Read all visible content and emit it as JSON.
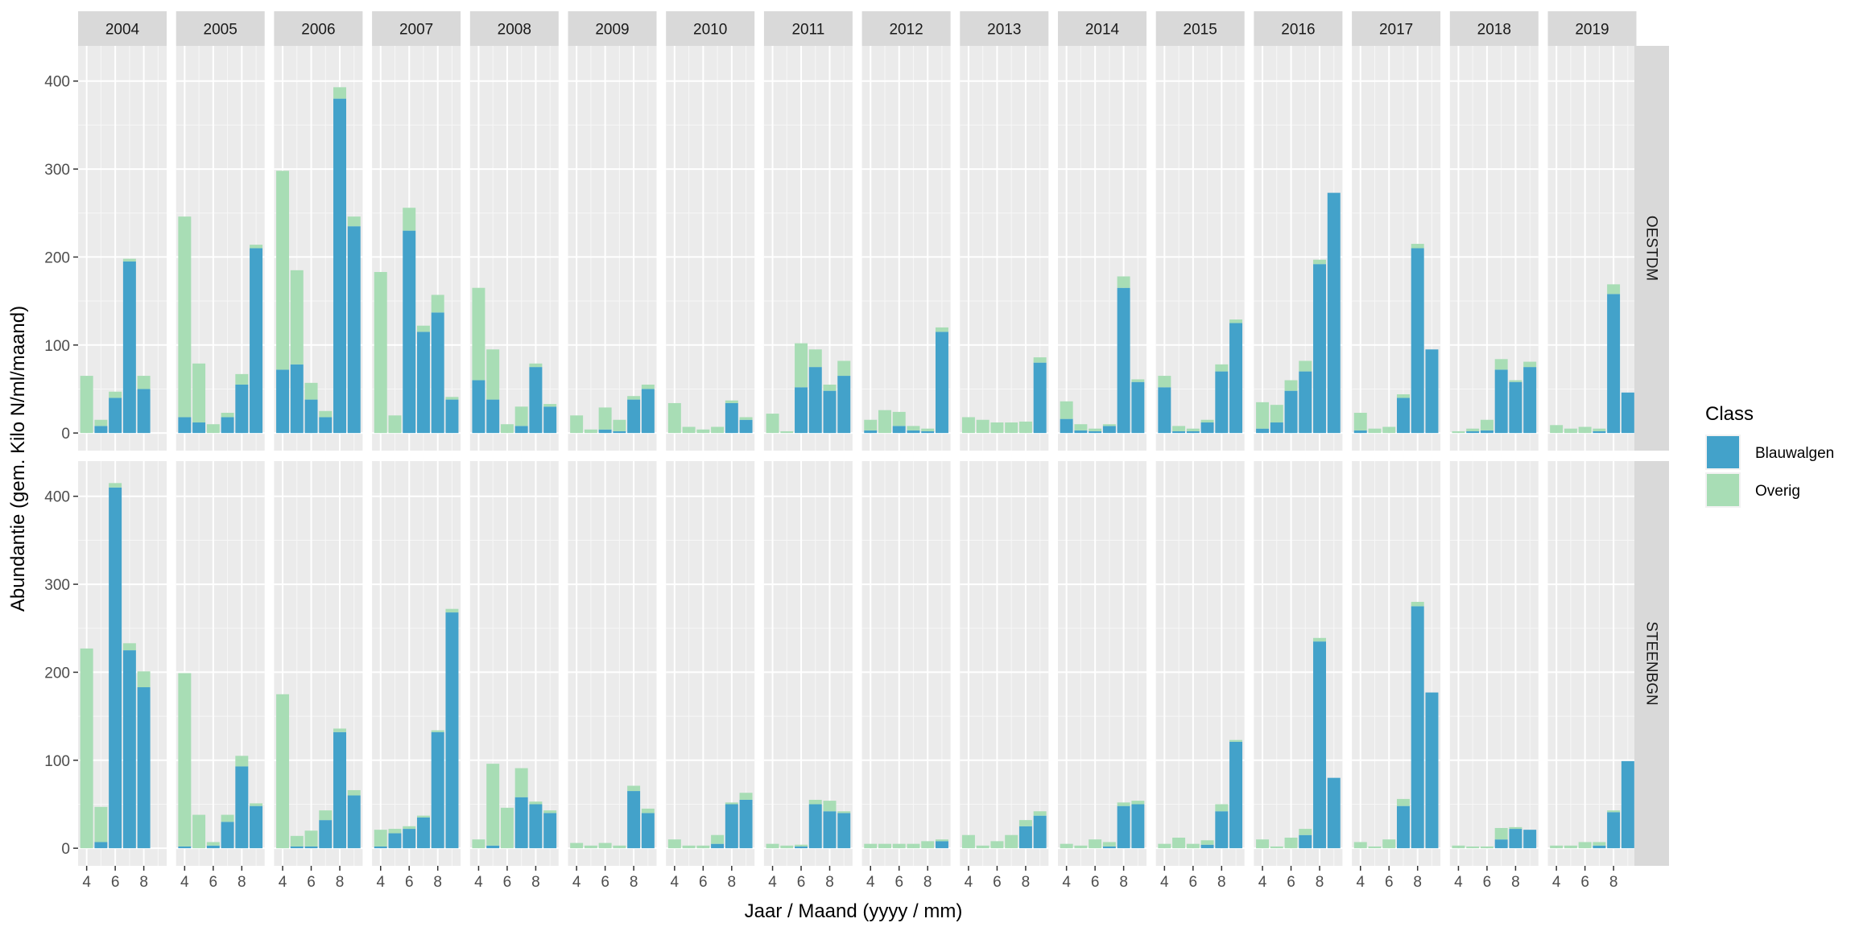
{
  "chart_data": {
    "type": "bar",
    "stacked": true,
    "xlabel": "Jaar / Maand (yyyy / mm)",
    "ylabel": "Abundantie (gem. Kilo N/ml/maand)",
    "ylim": [
      -20,
      440
    ],
    "yticks": [
      0,
      100,
      200,
      300,
      400
    ],
    "xticks": [
      4,
      6,
      8
    ],
    "months": [
      4,
      5,
      6,
      7,
      8,
      9
    ],
    "grid": true,
    "legend": {
      "title": "Class",
      "position": "right",
      "entries": [
        {
          "name": "Blauwalgen",
          "color": "#43A2CA"
        },
        {
          "name": "Overig",
          "color": "#A8DDB5"
        }
      ]
    },
    "years": [
      "2004",
      "2005",
      "2006",
      "2007",
      "2008",
      "2009",
      "2010",
      "2011",
      "2012",
      "2013",
      "2014",
      "2015",
      "2016",
      "2017",
      "2018",
      "2019"
    ],
    "rows": [
      {
        "label": "OESTDM",
        "series": [
          {
            "name": "Blauwalgen",
            "values": [
              [
                0,
                8,
                40,
                195,
                50,
                0
              ],
              [
                18,
                12,
                0,
                18,
                55,
                210
              ],
              [
                72,
                78,
                38,
                18,
                380,
                235
              ],
              [
                0,
                0,
                230,
                115,
                137,
                38
              ],
              [
                60,
                38,
                0,
                8,
                75,
                30
              ],
              [
                0,
                0,
                4,
                2,
                38,
                50
              ],
              [
                0,
                0,
                0,
                0,
                34,
                15
              ],
              [
                0,
                0,
                52,
                75,
                48,
                65
              ],
              [
                3,
                0,
                8,
                3,
                2,
                115
              ],
              [
                0,
                0,
                0,
                0,
                0,
                80
              ],
              [
                16,
                3,
                2,
                8,
                165,
                58
              ],
              [
                52,
                2,
                2,
                12,
                70,
                125
              ],
              [
                5,
                12,
                48,
                70,
                192,
                273
              ],
              [
                3,
                0,
                0,
                40,
                210,
                95
              ],
              [
                0,
                2,
                3,
                72,
                58,
                75
              ],
              [
                0,
                0,
                0,
                2,
                158,
                46
              ]
            ]
          },
          {
            "name": "Overig",
            "values": [
              [
                65,
                7,
                7,
                3,
                15,
                0
              ],
              [
                228,
                67,
                10,
                5,
                12,
                4
              ],
              [
                226,
                107,
                19,
                7,
                13,
                11
              ],
              [
                183,
                20,
                26,
                7,
                20,
                3
              ],
              [
                105,
                57,
                10,
                22,
                4,
                3
              ],
              [
                20,
                4,
                25,
                13,
                4,
                5
              ],
              [
                34,
                7,
                4,
                7,
                3,
                3
              ],
              [
                22,
                2,
                50,
                20,
                7,
                17
              ],
              [
                12,
                26,
                16,
                5,
                3,
                5
              ],
              [
                18,
                15,
                12,
                12,
                13,
                6
              ],
              [
                20,
                7,
                3,
                2,
                13,
                3
              ],
              [
                13,
                6,
                3,
                3,
                8,
                4
              ],
              [
                30,
                20,
                12,
                12,
                5,
                0
              ],
              [
                20,
                5,
                7,
                4,
                5,
                0
              ],
              [
                2,
                3,
                12,
                12,
                2,
                6
              ],
              [
                9,
                5,
                7,
                3,
                11,
                0
              ]
            ]
          }
        ]
      },
      {
        "label": "STEENBGN",
        "series": [
          {
            "name": "Blauwalgen",
            "values": [
              [
                0,
                7,
                410,
                225,
                183,
                0
              ],
              [
                2,
                0,
                3,
                30,
                93,
                48
              ],
              [
                0,
                2,
                2,
                32,
                132,
                60
              ],
              [
                2,
                17,
                22,
                35,
                132,
                268
              ],
              [
                0,
                3,
                0,
                58,
                50,
                40
              ],
              [
                0,
                0,
                0,
                0,
                65,
                40
              ],
              [
                0,
                0,
                0,
                5,
                50,
                55
              ],
              [
                0,
                0,
                2,
                50,
                42,
                40
              ],
              [
                0,
                0,
                0,
                0,
                0,
                8
              ],
              [
                0,
                0,
                0,
                0,
                25,
                37
              ],
              [
                0,
                0,
                0,
                2,
                48,
                50
              ],
              [
                0,
                0,
                0,
                4,
                42,
                121
              ],
              [
                0,
                0,
                0,
                15,
                235,
                80
              ],
              [
                0,
                0,
                0,
                48,
                275,
                177
              ],
              [
                0,
                0,
                0,
                10,
                22,
                21
              ],
              [
                0,
                0,
                0,
                3,
                41,
                99
              ]
            ]
          },
          {
            "name": "Overig",
            "values": [
              [
                227,
                40,
                5,
                8,
                18,
                0
              ],
              [
                197,
                38,
                4,
                8,
                12,
                3
              ],
              [
                175,
                12,
                18,
                11,
                4,
                6
              ],
              [
                19,
                5,
                3,
                2,
                2,
                4
              ],
              [
                10,
                93,
                46,
                33,
                3,
                3
              ],
              [
                6,
                3,
                6,
                3,
                6,
                5
              ],
              [
                10,
                3,
                3,
                10,
                2,
                8
              ],
              [
                5,
                3,
                2,
                5,
                12,
                2
              ],
              [
                5,
                5,
                5,
                5,
                8,
                2
              ],
              [
                15,
                3,
                8,
                15,
                7,
                5
              ],
              [
                5,
                3,
                10,
                5,
                4,
                4
              ],
              [
                5,
                12,
                5,
                5,
                8,
                2
              ],
              [
                10,
                2,
                12,
                7,
                4,
                0
              ],
              [
                7,
                2,
                10,
                8,
                5,
                0
              ],
              [
                3,
                2,
                2,
                13,
                2,
                0
              ],
              [
                3,
                3,
                7,
                4,
                2,
                0
              ]
            ]
          }
        ]
      }
    ]
  }
}
